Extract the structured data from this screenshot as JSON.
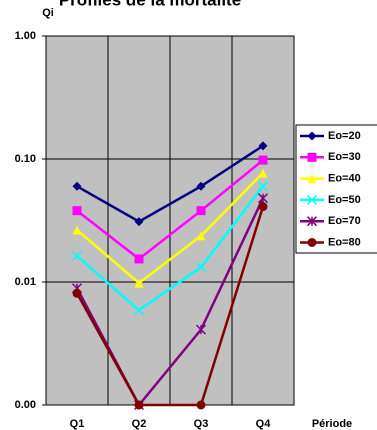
{
  "chart_data": {
    "type": "line",
    "title": "Profiles de la mortalité",
    "y_label": "Qi",
    "x_label": "Période",
    "categories": [
      "Q1",
      "Q2",
      "Q3",
      "Q4"
    ],
    "ylog": true,
    "ylim": [
      0.001,
      1
    ],
    "yticks": [
      {
        "value": 0.001,
        "label": "0.00"
      },
      {
        "value": 0.01,
        "label": "0.01"
      },
      {
        "value": 0.1,
        "label": "0.10"
      },
      {
        "value": 1,
        "label": "1.00"
      }
    ],
    "grid": true,
    "legend": "right",
    "series": [
      {
        "name": "Eo=20",
        "color": "#000080",
        "marker": "diamond",
        "values": [
          0.06,
          0.031,
          0.06,
          0.128
        ]
      },
      {
        "name": "Eo=30",
        "color": "#ff00ff",
        "marker": "square",
        "values": [
          0.038,
          0.0154,
          0.038,
          0.098
        ]
      },
      {
        "name": "Eo=40",
        "color": "#ffff00",
        "marker": "triangle",
        "values": [
          0.0265,
          0.0098,
          0.0237,
          0.077
        ]
      },
      {
        "name": "Eo=50",
        "color": "#00ffff",
        "marker": "x",
        "values": [
          0.0163,
          0.0059,
          0.0132,
          0.06
        ]
      },
      {
        "name": "Eo=70",
        "color": "#800080",
        "marker": "star",
        "values": [
          0.0089,
          0.001,
          0.0041,
          0.048
        ]
      },
      {
        "name": "Eo=80",
        "color": "#800000",
        "marker": "circle",
        "values": [
          0.0081,
          0.001,
          0.001,
          0.041
        ]
      }
    ]
  }
}
